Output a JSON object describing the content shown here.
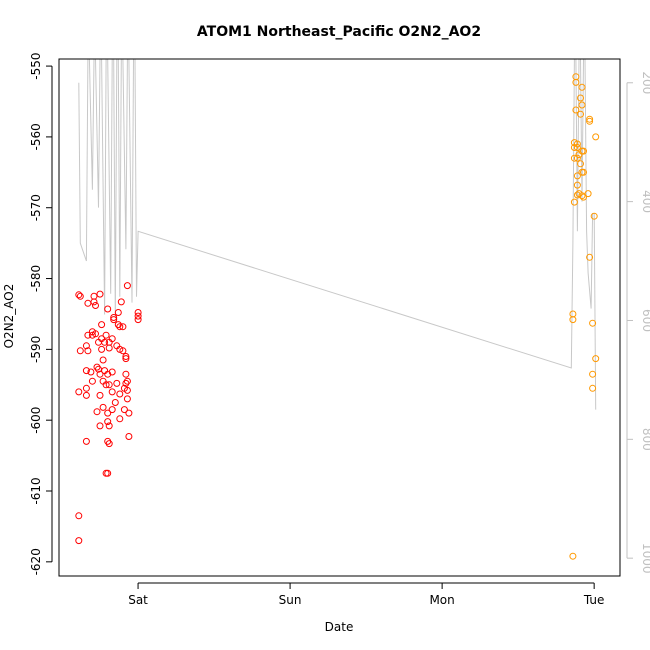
{
  "chart_data": {
    "type": "scatter",
    "title": "ATOM1 Northeast_Pacific O2N2_AO2",
    "xlabel": "Date",
    "ylabel": "O2N2_AO2",
    "x_ticks": [
      {
        "label": "Sat",
        "t": 1.0
      },
      {
        "label": "Sun",
        "t": 2.0
      },
      {
        "label": "Mon",
        "t": 3.0
      },
      {
        "label": "Tue",
        "t": 4.0
      }
    ],
    "xlim": [
      0.48,
      4.17
    ],
    "ylim": [
      -622,
      -549
    ],
    "y_ticks": [
      -620,
      -610,
      -600,
      -590,
      -580,
      -570,
      -560,
      -550
    ],
    "y2lim": [
      1030,
      160
    ],
    "y2_ticks": [
      200,
      400,
      600,
      800,
      1000
    ],
    "grid": false,
    "colors": {
      "series_early": "#ff0000",
      "series_late": "#ff9900",
      "secondary_line": "#c8c8c8",
      "secondary_axis": "#c0c0c0",
      "axes": "#000000"
    },
    "series": [
      {
        "color_key": "series_early",
        "points": [
          [
            0.61,
            -617.0
          ],
          [
            0.61,
            -613.5
          ],
          [
            0.61,
            -596.0
          ],
          [
            0.62,
            -590.2
          ],
          [
            0.61,
            -582.3
          ],
          [
            0.62,
            -582.5
          ],
          [
            0.66,
            -603.0
          ],
          [
            0.66,
            -596.5
          ],
          [
            0.66,
            -595.5
          ],
          [
            0.66,
            -593.0
          ],
          [
            0.66,
            -589.5
          ],
          [
            0.67,
            -588.0
          ],
          [
            0.67,
            -590.2
          ],
          [
            0.67,
            -583.5
          ],
          [
            0.69,
            -593.2
          ],
          [
            0.7,
            -594.5
          ],
          [
            0.7,
            -588.0
          ],
          [
            0.7,
            -587.5
          ],
          [
            0.71,
            -583.3
          ],
          [
            0.71,
            -582.5
          ],
          [
            0.72,
            -583.8
          ],
          [
            0.72,
            -587.8
          ],
          [
            0.73,
            -598.8
          ],
          [
            0.73,
            -592.5
          ],
          [
            0.74,
            -592.8
          ],
          [
            0.74,
            -589.0
          ],
          [
            0.75,
            -600.8
          ],
          [
            0.75,
            -596.5
          ],
          [
            0.75,
            -593.5
          ],
          [
            0.75,
            -582.2
          ],
          [
            0.76,
            -588.5
          ],
          [
            0.76,
            -586.5
          ],
          [
            0.76,
            -590.0
          ],
          [
            0.77,
            -598.2
          ],
          [
            0.77,
            -594.5
          ],
          [
            0.77,
            -591.5
          ],
          [
            0.78,
            -593.0
          ],
          [
            0.78,
            -589.0
          ],
          [
            0.79,
            -607.5
          ],
          [
            0.79,
            -595.0
          ],
          [
            0.79,
            -588.0
          ],
          [
            0.8,
            -607.5
          ],
          [
            0.8,
            -603.0
          ],
          [
            0.8,
            -600.2
          ],
          [
            0.8,
            -599.0
          ],
          [
            0.8,
            -593.5
          ],
          [
            0.8,
            -584.3
          ],
          [
            0.81,
            -603.3
          ],
          [
            0.81,
            -600.8
          ],
          [
            0.81,
            -595.0
          ],
          [
            0.81,
            -589.8
          ],
          [
            0.81,
            -589.0
          ],
          [
            0.83,
            -598.5
          ],
          [
            0.83,
            -596.0
          ],
          [
            0.83,
            -593.2
          ],
          [
            0.83,
            -588.5
          ],
          [
            0.84,
            -585.5
          ],
          [
            0.84,
            -585.8
          ],
          [
            0.85,
            -597.5
          ],
          [
            0.86,
            -594.8
          ],
          [
            0.86,
            -589.5
          ],
          [
            0.87,
            -586.5
          ],
          [
            0.87,
            -584.8
          ],
          [
            0.88,
            -599.8
          ],
          [
            0.88,
            -596.3
          ],
          [
            0.88,
            -590.0
          ],
          [
            0.88,
            -586.8
          ],
          [
            0.89,
            -583.3
          ],
          [
            0.9,
            -586.8
          ],
          [
            0.9,
            -590.2
          ],
          [
            0.91,
            -598.5
          ],
          [
            0.91,
            -595.5
          ],
          [
            0.92,
            -594.8
          ],
          [
            0.92,
            -593.5
          ],
          [
            0.92,
            -591.0
          ],
          [
            0.92,
            -591.3
          ],
          [
            0.93,
            -597.0
          ],
          [
            0.93,
            -595.8
          ],
          [
            0.93,
            -594.5
          ],
          [
            0.93,
            -581.0
          ],
          [
            0.94,
            -602.3
          ],
          [
            0.94,
            -599.0
          ],
          [
            1.0,
            -585.8
          ],
          [
            1.0,
            -585.3
          ],
          [
            1.0,
            -584.8
          ]
        ]
      },
      {
        "color_key": "series_late",
        "points": [
          [
            3.86,
            -619.2
          ],
          [
            3.86,
            -585.8
          ],
          [
            3.86,
            -585.0
          ],
          [
            3.87,
            -569.2
          ],
          [
            3.87,
            -563.0
          ],
          [
            3.87,
            -561.5
          ],
          [
            3.87,
            -560.8
          ],
          [
            3.88,
            -556.2
          ],
          [
            3.88,
            -552.3
          ],
          [
            3.88,
            -551.5
          ],
          [
            3.89,
            -568.2
          ],
          [
            3.89,
            -566.8
          ],
          [
            3.89,
            -565.5
          ],
          [
            3.89,
            -563.0
          ],
          [
            3.89,
            -561.5
          ],
          [
            3.89,
            -561.0
          ],
          [
            3.9,
            -568.0
          ],
          [
            3.9,
            -562.5
          ],
          [
            3.91,
            -563.8
          ],
          [
            3.91,
            -556.8
          ],
          [
            3.91,
            -554.5
          ],
          [
            3.92,
            -568.3
          ],
          [
            3.92,
            -565.0
          ],
          [
            3.92,
            -562.0
          ],
          [
            3.92,
            -555.5
          ],
          [
            3.92,
            -553.0
          ],
          [
            3.93,
            -568.5
          ],
          [
            3.93,
            -565.0
          ],
          [
            3.93,
            -562.0
          ],
          [
            3.96,
            -568.0
          ],
          [
            3.97,
            -557.5
          ],
          [
            3.97,
            -557.8
          ],
          [
            3.97,
            -577.0
          ],
          [
            3.99,
            -586.3
          ],
          [
            3.99,
            -593.5
          ],
          [
            3.99,
            -595.5
          ],
          [
            4.0,
            -571.2
          ],
          [
            4.01,
            -560.0
          ],
          [
            4.01,
            -591.3
          ]
        ]
      }
    ],
    "secondary_line": [
      [
        0.61,
        200
      ],
      [
        0.62,
        470
      ],
      [
        0.66,
        500
      ],
      [
        0.67,
        160
      ],
      [
        0.68,
        160
      ],
      [
        0.7,
        380
      ],
      [
        0.71,
        160
      ],
      [
        0.72,
        160
      ],
      [
        0.74,
        410
      ],
      [
        0.75,
        160
      ],
      [
        0.76,
        160
      ],
      [
        0.78,
        590
      ],
      [
        0.79,
        160
      ],
      [
        0.8,
        160
      ],
      [
        0.82,
        555
      ],
      [
        0.83,
        160
      ],
      [
        0.84,
        160
      ],
      [
        0.85,
        595
      ],
      [
        0.86,
        160
      ],
      [
        0.87,
        160
      ],
      [
        0.88,
        560
      ],
      [
        0.89,
        160
      ],
      [
        0.9,
        160
      ],
      [
        0.92,
        480
      ],
      [
        0.93,
        160
      ],
      [
        0.94,
        160
      ],
      [
        0.96,
        570
      ],
      [
        0.97,
        160
      ],
      [
        0.98,
        160
      ],
      [
        0.99,
        560
      ],
      [
        1.0,
        450
      ],
      [
        3.85,
        680
      ],
      [
        3.86,
        470
      ],
      [
        3.87,
        160
      ],
      [
        3.88,
        160
      ],
      [
        3.89,
        450
      ],
      [
        3.9,
        160
      ],
      [
        3.91,
        160
      ],
      [
        3.92,
        400
      ],
      [
        3.93,
        160
      ],
      [
        3.94,
        160
      ],
      [
        3.95,
        450
      ],
      [
        3.96,
        520
      ],
      [
        3.98,
        580
      ],
      [
        3.99,
        420
      ],
      [
        4.0,
        420
      ],
      [
        4.01,
        750
      ]
    ]
  }
}
